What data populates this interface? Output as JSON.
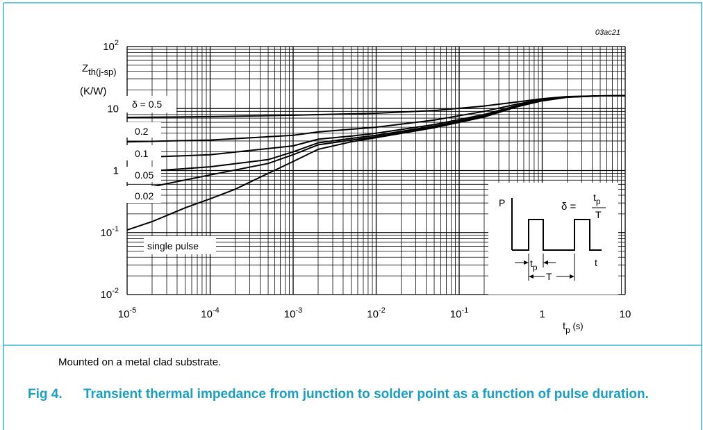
{
  "figure_id": "03ac21",
  "note": "Mounted on a metal clad substrate.",
  "caption_number": "Fig 4.",
  "caption_text": "Transient thermal impedance from junction to solder point as a function of pulse duration.",
  "colors": {
    "frame": "#3cb4d6",
    "caption": "#1a9fc4",
    "grid": "#000000"
  },
  "chart_data": {
    "type": "line",
    "x_scale": "log",
    "y_scale": "log",
    "xlim": [
      1e-05,
      10
    ],
    "ylim": [
      0.01,
      100
    ],
    "grid": true,
    "ylabel": "Zth(j-sp) (K/W)",
    "xlabel": "tp (s)",
    "xticks": [
      {
        "value": 1e-05,
        "base": "10",
        "exp": "-5"
      },
      {
        "value": 0.0001,
        "base": "10",
        "exp": "-4"
      },
      {
        "value": 0.001,
        "base": "10",
        "exp": "-3"
      },
      {
        "value": 0.01,
        "base": "10",
        "exp": "-2"
      },
      {
        "value": 0.1,
        "base": "10",
        "exp": "-1"
      },
      {
        "value": 1,
        "base": "1",
        "exp": ""
      },
      {
        "value": 10,
        "base": "10",
        "exp": ""
      }
    ],
    "yticks": [
      {
        "value": 100,
        "base": "10",
        "exp": "2"
      },
      {
        "value": 10,
        "base": "10",
        "exp": ""
      },
      {
        "value": 1,
        "base": "1",
        "exp": ""
      },
      {
        "value": 0.1,
        "base": "10",
        "exp": "-1"
      },
      {
        "value": 0.01,
        "base": "10",
        "exp": "-2"
      }
    ],
    "series": [
      {
        "name": "δ = 0.5",
        "x": [
          1e-05,
          0.0001,
          0.001,
          0.01,
          0.05,
          0.2,
          0.5,
          1,
          2,
          5,
          10
        ],
        "y": [
          7.2,
          7.4,
          7.8,
          8.4,
          9.3,
          11.0,
          12.8,
          14.4,
          15.6,
          16.0,
          16.1
        ]
      },
      {
        "name": "0.2",
        "x": [
          1e-05,
          0.0001,
          0.001,
          0.002,
          0.01,
          0.05,
          0.2,
          0.5,
          1,
          2,
          5,
          10
        ],
        "y": [
          2.9,
          3.1,
          3.7,
          4.2,
          5.0,
          6.5,
          9.0,
          11.8,
          14.0,
          15.5,
          16.0,
          16.1
        ]
      },
      {
        "name": "0.1",
        "x": [
          1e-05,
          0.0001,
          0.001,
          0.002,
          0.005,
          0.01,
          0.05,
          0.2,
          0.5,
          1,
          2,
          5,
          10
        ],
        "y": [
          1.6,
          1.8,
          2.5,
          3.2,
          3.6,
          4.0,
          5.5,
          8.0,
          11.2,
          13.6,
          15.4,
          16.0,
          16.1
        ]
      },
      {
        "name": "0.05",
        "x": [
          1e-05,
          0.0001,
          0.0005,
          0.001,
          0.002,
          0.005,
          0.01,
          0.05,
          0.2,
          0.5,
          1,
          2,
          5,
          10
        ],
        "y": [
          0.92,
          1.15,
          1.5,
          2.0,
          2.8,
          3.3,
          3.7,
          5.2,
          7.6,
          11.0,
          13.5,
          15.3,
          16.0,
          16.1
        ]
      },
      {
        "name": "0.02",
        "x": [
          1e-05,
          2e-05,
          0.0001,
          0.0005,
          0.001,
          0.002,
          0.005,
          0.01,
          0.05,
          0.2,
          0.5,
          1,
          2,
          5,
          10
        ],
        "y": [
          0.5,
          0.55,
          0.85,
          1.3,
          1.8,
          2.6,
          3.1,
          3.5,
          5.0,
          7.4,
          10.8,
          13.4,
          15.3,
          16.0,
          16.1
        ]
      },
      {
        "name": "single pulse",
        "x": [
          1e-05,
          2e-05,
          5e-05,
          0.0001,
          0.0002,
          0.0005,
          0.001,
          0.002,
          0.005,
          0.01,
          0.05,
          0.2,
          0.5,
          1,
          2,
          5,
          10
        ],
        "y": [
          0.11,
          0.15,
          0.25,
          0.35,
          0.5,
          0.9,
          1.4,
          2.2,
          2.9,
          3.4,
          4.9,
          7.3,
          10.7,
          13.3,
          15.2,
          16.0,
          16.1
        ]
      }
    ],
    "inset": {
      "p_label": "P",
      "t_label": "t",
      "tp_base": "t",
      "tp_sub": "p",
      "T_label": "T",
      "delta": "δ =",
      "frac_num_base": "t",
      "frac_num_sub": "p",
      "frac_den": "T"
    }
  }
}
